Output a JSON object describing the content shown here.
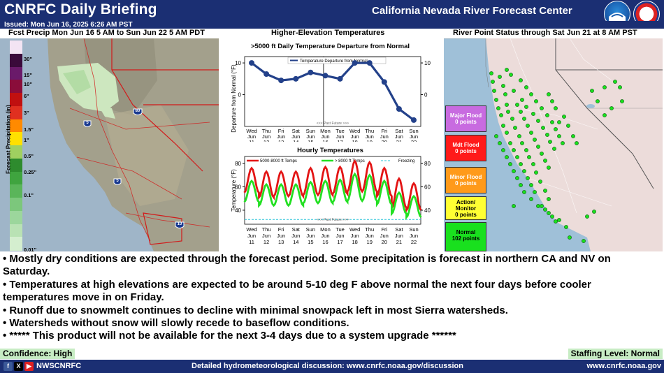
{
  "header": {
    "title": "CNRFC Daily Briefing",
    "center_name": "California Nevada River Forecast Center",
    "issued": "Issued: Mon Jun 16, 2025 6:26 AM PST"
  },
  "panels": {
    "precip": {
      "title": "Fcst Precip Mon Jun 16 5 AM to Sun Jun 22 5 AM PDT",
      "scale_label": "Forecast Precipitation (in)",
      "scale_ticks": [
        "30\"",
        "15\"",
        "10\"",
        "6\"",
        "3\"",
        "1.5\"",
        "1\"",
        "0.5\"",
        "0.25\"",
        "0.1\"",
        "0.01\""
      ],
      "highway_labels": [
        "80",
        "5",
        "5",
        "10"
      ],
      "colors": [
        "#f3e4f3",
        "#3a0a3a",
        "#6a1a6a",
        "#8a0d3a",
        "#c01010",
        "#e03020",
        "#ff8a00",
        "#ffe000",
        "#a0d060",
        "#2e8b2e",
        "#3fa43f",
        "#5ab55a",
        "#7cc77c",
        "#9cd69c",
        "#b9e2b4",
        "#d4eecf"
      ]
    },
    "temps": {
      "title": "Higher-Elevation Temperatures",
      "upper_title": ">5000 ft Daily Temperature Departure from Normal",
      "upper_legend": "Temperature Departure from Normal",
      "upper_ylabel": "Departure from Normal (°F)",
      "past_future": "<<< Past  Future >>>",
      "lower_title": "Hourly Temperatures",
      "lower_legend": [
        "5000-8000 ft Temps",
        "> 8000 ft Temps",
        "Freezing"
      ],
      "lower_ylabel": "Temperature (°F)",
      "days": [
        "Wed",
        "Thu",
        "Fri",
        "Sat",
        "Sun",
        "Mon",
        "Tue",
        "Wed",
        "Thu",
        "Fri",
        "Sat",
        "Sun"
      ],
      "dates": [
        "Jun 11",
        "Jun 12",
        "Jun 13",
        "Jun 14",
        "Jun 15",
        "Jun 16",
        "Jun 17",
        "Jun 18",
        "Jun 19",
        "Jun 20",
        "Jun 21",
        "Jun 22"
      ],
      "upper_ticks": [
        "10",
        "0"
      ],
      "lower_ticks": [
        "80",
        "60",
        "40"
      ]
    },
    "river": {
      "title": "River Point Status through Sat Jun 21 at 8 AM PST",
      "legend": [
        {
          "label": "Major Flood",
          "count": "0 points",
          "color": "#c86be0"
        },
        {
          "label": "Mdt Flood",
          "count": "0 points",
          "color": "#ff1a1a"
        },
        {
          "label": "Minor Flood",
          "count": "0 points",
          "color": "#ff9a1a"
        },
        {
          "label": "Action/ Monitor",
          "count": "0 points",
          "color": "#ffff33"
        },
        {
          "label": "Normal",
          "count": "102 points",
          "color": "#19e01e"
        }
      ]
    }
  },
  "chart_data": [
    {
      "type": "line",
      "title": ">5000 ft Daily Temperature Departure from Normal",
      "ylabel": "Departure from Normal (°F)",
      "categories": [
        "Wed Jun 11",
        "Thu Jun 12",
        "Fri Jun 13",
        "Sat Jun 14",
        "Sun Jun 15",
        "Mon Jun 16",
        "Tue Jun 17",
        "Wed Jun 18",
        "Thu Jun 19",
        "Fri Jun 20",
        "Sat Jun 21",
        "Sun Jun 22"
      ],
      "series": [
        {
          "name": "Temperature Departure from Normal",
          "values": [
            10,
            6.5,
            4.5,
            5,
            7,
            6,
            5,
            10,
            10,
            4,
            -4.5,
            -8
          ]
        }
      ],
      "ylim": [
        -10,
        12
      ]
    },
    {
      "type": "line",
      "title": "Hourly Temperatures",
      "ylabel": "Temperature (°F)",
      "categories": [
        "Wed Jun 11",
        "Thu Jun 12",
        "Fri Jun 13",
        "Sat Jun 14",
        "Sun Jun 15",
        "Mon Jun 16",
        "Tue Jun 17",
        "Wed Jun 18",
        "Thu Jun 19",
        "Fri Jun 20",
        "Sat Jun 21",
        "Sun Jun 22"
      ],
      "series": [
        {
          "name": "5000-8000 ft Temps",
          "daily_max": [
            76,
            73,
            73,
            73,
            76,
            77,
            77,
            82,
            81,
            76,
            67,
            63
          ],
          "daily_min": [
            55,
            51,
            52,
            52,
            53,
            53,
            54,
            56,
            56,
            52,
            42,
            40
          ]
        },
        {
          "name": "> 8000 ft Temps",
          "daily_max": [
            65,
            62,
            62,
            62,
            64,
            65,
            66,
            71,
            70,
            65,
            55,
            52
          ],
          "daily_min": [
            47,
            44,
            44,
            44,
            46,
            46,
            47,
            48,
            48,
            45,
            37,
            34
          ]
        },
        {
          "name": "Freezing",
          "value": 32
        }
      ],
      "ylim": [
        28,
        86
      ]
    }
  ],
  "bullets": [
    "• Mostly dry conditions are expected through the forecast period.  Some precipitation is forecast in northern CA and NV on Saturday.",
    "• Temperatures at high elevations are expected to be around 5-10 deg F above normal the next four days before cooler temperatures move in on Friday.",
    "• Runoff due to snowmelt continues to decline with minimal snowpack left in most Sierra watersheds.",
    "• Watersheds without snow will slowly recede to baseflow conditions.",
    "• *****  This product will not be available for the next 3-4 days due to a system upgrade ******"
  ],
  "confidence": "Confidence: High",
  "staffing": "Staffing Level: Normal",
  "footer": {
    "social_handle": "NWSCNRFC",
    "discussion": "Detailed hydrometeorological discussion: www.cnrfc.noaa.gov/discussion",
    "website": "www.cnrfc.noaa.gov"
  }
}
